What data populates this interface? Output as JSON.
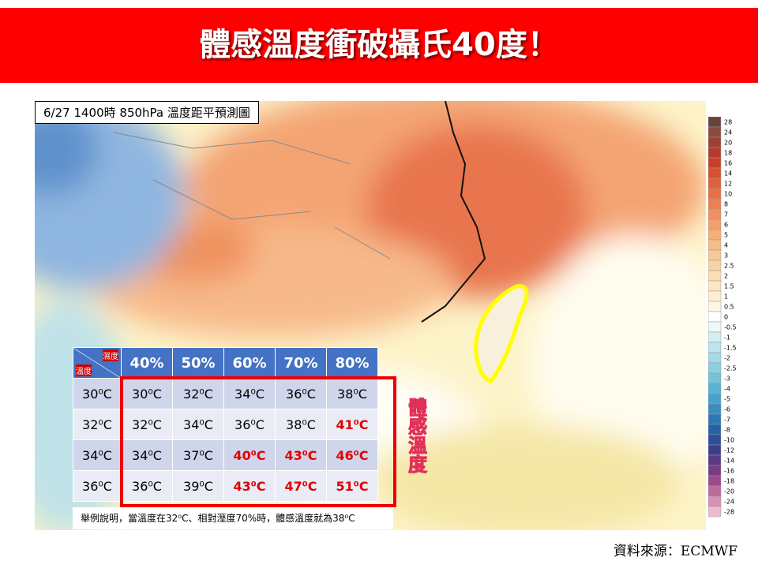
{
  "header": {
    "title": "體感溫度衝破攝氏40度！"
  },
  "map": {
    "caption": "6/27  1400時  850hPa 溫度距平預測圖",
    "colorbar": {
      "labels": [
        "28",
        "24",
        "20",
        "18",
        "16",
        "14",
        "12",
        "10",
        "8",
        "7",
        "6",
        "5",
        "4",
        "3",
        "2.5",
        "2",
        "1.5",
        "1",
        "0.5",
        "0",
        "-0.5",
        "-1",
        "-1.5",
        "-2",
        "-2.5",
        "-3",
        "-4",
        "-5",
        "-6",
        "-7",
        "-8",
        "-10",
        "-12",
        "-14",
        "-16",
        "-18",
        "-20",
        "-24",
        "-28"
      ]
    }
  },
  "table": {
    "corner_top": "濕度",
    "corner_bottom": "溫度",
    "columns": [
      "40%",
      "50%",
      "60%",
      "70%",
      "80%"
    ],
    "rows": [
      {
        "label": "30⁰C",
        "cells": [
          "30⁰C",
          "32⁰C",
          "34⁰C",
          "36⁰C",
          "38⁰C"
        ]
      },
      {
        "label": "32⁰C",
        "cells": [
          "32⁰C",
          "34⁰C",
          "36⁰C",
          "38⁰C",
          {
            "text": "41⁰C",
            "color": "#e00000"
          }
        ]
      },
      {
        "label": "34⁰C",
        "cells": [
          "34⁰C",
          "37⁰C",
          {
            "text": "40⁰C",
            "color": "#e00000"
          },
          {
            "text": "43⁰C",
            "color": "#e00000"
          },
          {
            "text": "46⁰C",
            "color": "#e00000"
          }
        ]
      },
      {
        "label": "36⁰C",
        "cells": [
          "36⁰C",
          "39⁰C",
          {
            "text": "43⁰C",
            "color": "#e00000"
          },
          {
            "text": "47⁰C",
            "color": "#e00000"
          },
          {
            "text": "51⁰C",
            "color": "#e00000"
          }
        ]
      }
    ],
    "note": "舉例說明，當溫度在32⁰C、相對溼度70%時，體感溫度就為38⁰C"
  },
  "side_label": "體感溫度",
  "source": "資料來源：ECMWF"
}
